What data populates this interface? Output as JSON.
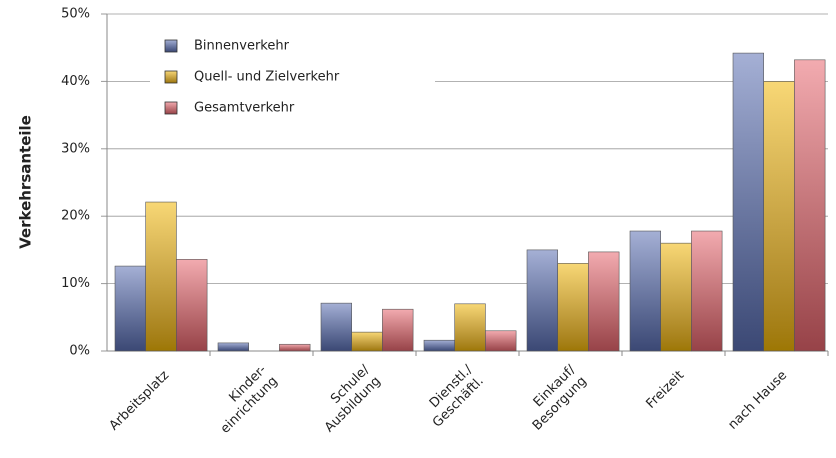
{
  "chart_data": {
    "type": "bar",
    "y_label": "Verkehrsanteile",
    "categories": [
      "Arbeitsplatz",
      "Kinder-\neinrichtung",
      "Schule/\nAusbildung",
      "Dienstl./\nGeschäftl.",
      "Einkauf/\nBesorgung",
      "Freizeit",
      "nach Hause"
    ],
    "series": [
      {
        "name": "Binnenverkehr",
        "color": "#5b6fb3",
        "values": [
          12.6,
          1.2,
          7.1,
          1.6,
          15.0,
          17.8,
          44.2
        ]
      },
      {
        "name": "Quell- und Zielverkehr",
        "color": "#f2b705",
        "values": [
          22.1,
          0,
          2.8,
          7.0,
          13.0,
          16.0,
          40.0
        ]
      },
      {
        "name": "Gesamtverkehr",
        "color": "#e8666f",
        "values": [
          13.6,
          1.0,
          6.2,
          3.0,
          14.7,
          17.8,
          43.2
        ]
      }
    ],
    "ylim": [
      0,
      50
    ],
    "yticks": [
      {
        "value": 0,
        "label": "0%"
      },
      {
        "value": 10,
        "label": "10%"
      },
      {
        "value": 20,
        "label": "20%"
      },
      {
        "value": 30,
        "label": "30%"
      },
      {
        "value": 40,
        "label": "40%"
      },
      {
        "value": 50,
        "label": "50%"
      }
    ],
    "grid": true,
    "legend": "upper left"
  }
}
